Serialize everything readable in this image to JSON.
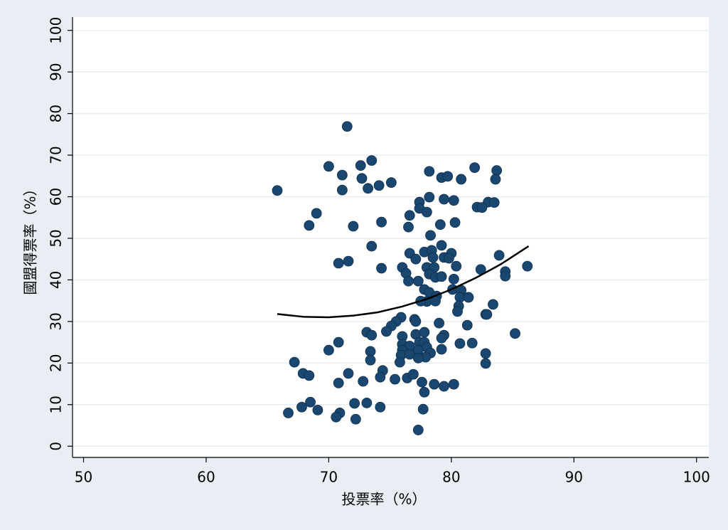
{
  "chart_data": {
    "type": "scatter",
    "x_label": "投票率（%）",
    "y_label": "國盟得票率（%）",
    "xlim": [
      49.1,
      101
    ],
    "ylim": [
      -2.7,
      103.2
    ],
    "xticks": [
      50,
      60,
      70,
      80,
      90,
      100
    ],
    "yticks": [
      0,
      10,
      20,
      30,
      40,
      50,
      60,
      70,
      80,
      90,
      100
    ],
    "grid": true,
    "color": "#1a476f",
    "x": [
      65.8,
      71.5,
      70.0,
      71.1,
      71.1,
      73.5,
      72.6,
      72.7,
      73.2,
      74.1,
      75.1,
      69.0,
      68.4,
      72.0,
      74.3,
      73.5,
      70.8,
      71.6,
      74.3,
      76.6,
      76.5,
      77.4,
      77.4,
      78.0,
      78.2,
      78.2,
      79.2,
      79.7,
      79.4,
      80.2,
      81.9,
      80.8,
      83.7,
      83.6,
      83.0,
      83.5,
      82.1,
      82.5,
      79.1,
      80.3,
      78.3,
      76.6,
      77.1,
      77.8,
      78.4,
      78.5,
      79.2,
      79.4,
      80.0,
      79.8,
      80.4,
      78.0,
      78.6,
      78.2,
      76.0,
      76.3,
      76.5,
      77.3,
      78.7,
      79.2,
      80.2,
      80.1,
      80.8,
      80.7,
      81.4,
      77.8,
      78.2,
      78.8,
      78.0,
      77.5,
      78.7,
      80.6,
      80.5,
      82.8,
      83.4,
      82.9,
      83.9,
      84.4,
      84.4,
      82.4,
      86.2,
      85.2,
      81.3,
      79.0,
      75.9,
      75.5,
      77.0,
      77.1,
      75.1,
      74.7,
      73.1,
      73.5,
      76.0,
      77.1,
      77.8,
      79.4,
      79.2,
      76.0,
      76.6,
      77.4,
      77.8,
      78.0,
      77.3,
      76.0,
      75.9,
      75.8,
      76.6,
      78.3,
      77.9,
      77.3,
      79.2,
      80.7,
      81.7,
      82.8,
      82.8,
      73.4,
      73.4,
      70.0,
      70.8,
      67.2,
      67.9,
      68.4,
      71.6,
      74.4,
      74.2,
      75.4,
      76.4,
      76.9,
      77.6,
      77.8,
      78.6,
      79.4,
      80.2,
      72.8,
      70.8,
      68.5,
      67.8,
      69.1,
      66.7,
      70.9,
      70.6,
      72.2,
      72.1,
      73.1,
      74.2,
      77.7,
      77.3
    ],
    "values": [
      61.5,
      76.9,
      67.3,
      65.2,
      61.6,
      68.7,
      67.5,
      64.4,
      62.0,
      62.7,
      63.4,
      56.0,
      53.1,
      52.9,
      53.9,
      48.1,
      44.0,
      44.5,
      42.8,
      55.5,
      52.7,
      58.7,
      57.2,
      56.3,
      59.9,
      66.1,
      64.6,
      64.9,
      59.4,
      59.1,
      67.0,
      64.2,
      66.3,
      64.2,
      58.7,
      58.6,
      57.5,
      57.4,
      53.3,
      53.8,
      50.7,
      46.4,
      45.0,
      46.7,
      47.1,
      45.4,
      48.3,
      45.4,
      46.4,
      45.2,
      43.3,
      43.0,
      43.0,
      41.4,
      43.0,
      41.6,
      39.7,
      39.7,
      40.6,
      40.8,
      40.2,
      37.7,
      37.5,
      35.8,
      35.8,
      37.7,
      37.0,
      36.1,
      34.8,
      34.9,
      34.9,
      33.7,
      32.4,
      31.7,
      34.1,
      31.7,
      45.9,
      42.0,
      40.9,
      42.5,
      43.3,
      27.1,
      29.1,
      29.6,
      31.0,
      30.0,
      30.5,
      30.0,
      28.9,
      27.6,
      27.4,
      26.7,
      26.4,
      26.9,
      27.4,
      26.7,
      26.0,
      24.5,
      24.1,
      25.0,
      25.0,
      23.8,
      23.1,
      23.1,
      21.9,
      20.2,
      22.1,
      22.4,
      21.4,
      21.2,
      23.3,
      24.7,
      24.8,
      22.3,
      19.9,
      22.8,
      20.7,
      23.1,
      25.0,
      20.2,
      17.5,
      17.0,
      17.5,
      18.2,
      16.6,
      16.1,
      16.4,
      17.3,
      15.4,
      13.0,
      14.9,
      14.4,
      14.9,
      15.6,
      15.2,
      10.6,
      9.4,
      8.7,
      8.0,
      8.0,
      7.0,
      6.5,
      10.3,
      10.4,
      9.4,
      8.9,
      3.9
    ],
    "fit": {
      "color": "#000000",
      "x": [
        65.8,
        68,
        70,
        72,
        74,
        76,
        78,
        80,
        82,
        84,
        86.3
      ],
      "values": [
        31.8,
        31.1,
        31.0,
        31.4,
        32.2,
        33.6,
        35.4,
        37.7,
        40.5,
        43.7,
        48.1
      ]
    }
  }
}
